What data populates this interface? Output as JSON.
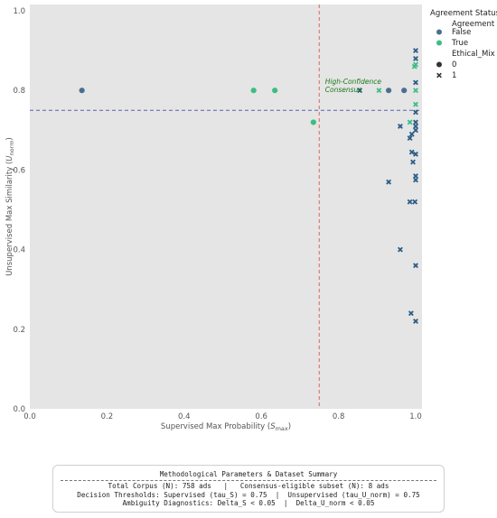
{
  "chart_data": {
    "type": "scatter",
    "title": "",
    "xlabel": "Supervised Max Probability (S_max)",
    "ylabel": "Unsupervised Max Similarity (U_norm)",
    "xlim": [
      0.0,
      1.0
    ],
    "ylim": [
      0.0,
      1.0
    ],
    "x_ticks": [
      "0.0",
      "0.2",
      "0.4",
      "0.6",
      "0.8",
      "1.0"
    ],
    "y_ticks": [
      "0.0",
      "0.2",
      "0.4",
      "0.6",
      "0.8",
      "1.0"
    ],
    "grid": false,
    "threshold_lines": {
      "supervised_tau_S": 0.75,
      "unsupervised_tau_U_norm": 0.75
    },
    "annotation": {
      "text_line1": "High-Confidence",
      "text_line2": "Consensus",
      "x": 0.77,
      "y": 0.8
    },
    "legend": {
      "placement": "outside-right",
      "title": "Agreement Status",
      "hue_title": "Agreement",
      "hue_entries": [
        {
          "label": "False",
          "color": "#4a6f8f"
        },
        {
          "label": "True",
          "color": "#3dbd83"
        }
      ],
      "style_title": "Ethical_Mix",
      "style_entries": [
        {
          "label": "0",
          "marker": "circle"
        },
        {
          "label": "1",
          "marker": "x"
        }
      ]
    },
    "colors": {
      "false": "#4a6f8f",
      "true": "#3dbd83",
      "false_x": "#2b5d86",
      "true_x": "#3dbd83",
      "hline": "#5b5fb0",
      "vline": "#d9675f",
      "background": "#e5e5e5"
    },
    "points": [
      {
        "x": 0.135,
        "y": 0.8,
        "agreement": false,
        "ethical_mix": 0
      },
      {
        "x": 0.58,
        "y": 0.8,
        "agreement": true,
        "ethical_mix": 0
      },
      {
        "x": 0.635,
        "y": 0.8,
        "agreement": true,
        "ethical_mix": 0
      },
      {
        "x": 0.735,
        "y": 0.72,
        "agreement": true,
        "ethical_mix": 0
      },
      {
        "x": 0.855,
        "y": 0.8,
        "agreement": false,
        "ethical_mix": 1
      },
      {
        "x": 0.905,
        "y": 0.8,
        "agreement": true,
        "ethical_mix": 1
      },
      {
        "x": 0.93,
        "y": 0.8,
        "agreement": false,
        "ethical_mix": 0
      },
      {
        "x": 0.97,
        "y": 0.8,
        "agreement": false,
        "ethical_mix": 0
      },
      {
        "x": 1.0,
        "y": 0.8,
        "agreement": true,
        "ethical_mix": 1
      },
      {
        "x": 1.0,
        "y": 0.9,
        "agreement": false,
        "ethical_mix": 1
      },
      {
        "x": 1.0,
        "y": 0.88,
        "agreement": false,
        "ethical_mix": 1
      },
      {
        "x": 1.0,
        "y": 0.865,
        "agreement": true,
        "ethical_mix": 1
      },
      {
        "x": 0.997,
        "y": 0.86,
        "agreement": true,
        "ethical_mix": 1
      },
      {
        "x": 1.0,
        "y": 0.82,
        "agreement": false,
        "ethical_mix": 1
      },
      {
        "x": 1.0,
        "y": 0.765,
        "agreement": true,
        "ethical_mix": 1
      },
      {
        "x": 1.0,
        "y": 0.745,
        "agreement": false,
        "ethical_mix": 1
      },
      {
        "x": 0.985,
        "y": 0.72,
        "agreement": true,
        "ethical_mix": 1
      },
      {
        "x": 1.0,
        "y": 0.72,
        "agreement": false,
        "ethical_mix": 1
      },
      {
        "x": 1.0,
        "y": 0.71,
        "agreement": false,
        "ethical_mix": 1
      },
      {
        "x": 1.0,
        "y": 0.7,
        "agreement": false,
        "ethical_mix": 1
      },
      {
        "x": 0.96,
        "y": 0.71,
        "agreement": false,
        "ethical_mix": 1
      },
      {
        "x": 0.99,
        "y": 0.69,
        "agreement": false,
        "ethical_mix": 1
      },
      {
        "x": 0.985,
        "y": 0.68,
        "agreement": false,
        "ethical_mix": 1
      },
      {
        "x": 0.99,
        "y": 0.645,
        "agreement": false,
        "ethical_mix": 1
      },
      {
        "x": 1.0,
        "y": 0.64,
        "agreement": false,
        "ethical_mix": 1
      },
      {
        "x": 0.993,
        "y": 0.62,
        "agreement": false,
        "ethical_mix": 1
      },
      {
        "x": 1.0,
        "y": 0.585,
        "agreement": false,
        "ethical_mix": 1
      },
      {
        "x": 1.0,
        "y": 0.575,
        "agreement": false,
        "ethical_mix": 1
      },
      {
        "x": 0.93,
        "y": 0.57,
        "agreement": false,
        "ethical_mix": 1
      },
      {
        "x": 0.985,
        "y": 0.52,
        "agreement": false,
        "ethical_mix": 1
      },
      {
        "x": 0.998,
        "y": 0.52,
        "agreement": false,
        "ethical_mix": 1
      },
      {
        "x": 0.96,
        "y": 0.4,
        "agreement": false,
        "ethical_mix": 1
      },
      {
        "x": 1.0,
        "y": 0.36,
        "agreement": false,
        "ethical_mix": 1
      },
      {
        "x": 0.988,
        "y": 0.24,
        "agreement": false,
        "ethical_mix": 1
      },
      {
        "x": 1.0,
        "y": 0.22,
        "agreement": false,
        "ethical_mix": 1
      }
    ]
  },
  "summary": {
    "title": "Methodological Parameters & Dataset Summary",
    "line1": "Total Corpus (N): 758 ads   |   Consensus-eligible subset (N): 8 ads",
    "line2": "Decision Thresholds: Supervised (tau_S) = 0.75  |  Unsupervised (tau_U_norm) = 0.75",
    "line3": "Ambiguity Diagnostics: Delta_S < 0.05  |  Delta_U_norm < 0.05"
  }
}
